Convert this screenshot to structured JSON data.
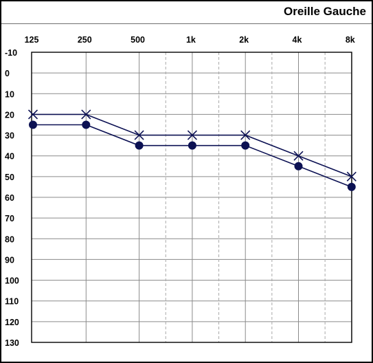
{
  "panel": {
    "title": "Oreille Gauche"
  },
  "chart_data": {
    "type": "line",
    "title": "Oreille Gauche",
    "categories": [
      "125",
      "250",
      "500",
      "1k",
      "2k",
      "4k",
      "8k"
    ],
    "half_octave_gridlines": true,
    "y_ticks": [
      -10,
      0,
      10,
      20,
      30,
      40,
      50,
      60,
      70,
      80,
      90,
      100,
      110,
      120,
      130
    ],
    "ylim": [
      -10,
      130
    ],
    "y_inverted": true,
    "grid": true,
    "series": [
      {
        "marker": "x",
        "values": [
          20,
          20,
          30,
          30,
          30,
          40,
          50
        ],
        "color": "#0c1153"
      },
      {
        "marker": "dot",
        "values": [
          25,
          25,
          35,
          35,
          35,
          45,
          55
        ],
        "color": "#0c1153"
      }
    ],
    "colors": {
      "grid": "#8a8a8a",
      "grid_dashed": "#a8a8a8",
      "frame": "#000000"
    }
  }
}
